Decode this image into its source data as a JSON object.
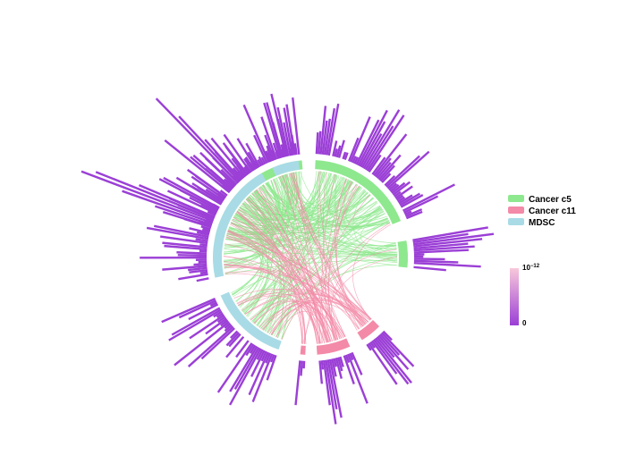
{
  "colors": {
    "cancer_c5": "#8ee88e",
    "cancer_c11": "#f38aa8",
    "mdsc": "#a8dbe6",
    "bar": "#9b3fd6",
    "bar_edge": "#ffffff",
    "colorbar_top": "#f8c8da",
    "colorbar_bottom": "#9b3fd6"
  },
  "legend": {
    "items": [
      {
        "label": "Cancer c5",
        "color": "#8ee88e"
      },
      {
        "label": "Cancer c11",
        "color": "#f38aa8"
      },
      {
        "label": "MDSC",
        "color": "#a8dbe6"
      }
    ]
  },
  "colorbar": {
    "top_label_base": "10",
    "top_label_exp": "−12",
    "bottom_label": "0"
  },
  "chart_data": {
    "type": "circos",
    "groups": [
      {
        "name": "Cancer c5",
        "segments": [
          [
            -78,
            -5
          ],
          [
            3,
            68
          ],
          [
            80,
            96
          ]
        ]
      },
      {
        "name": "Cancer c11",
        "segments": [
          [
            135,
            148
          ],
          [
            156,
            176
          ],
          [
            183,
            186
          ]
        ]
      },
      {
        "name": "MDSC",
        "segments": [
          [
            199,
            247
          ],
          [
            258,
            330
          ],
          [
            337,
            353
          ]
        ]
      }
    ],
    "link_colors": [
      "Cancer c5",
      "Cancer c11"
    ]
  }
}
